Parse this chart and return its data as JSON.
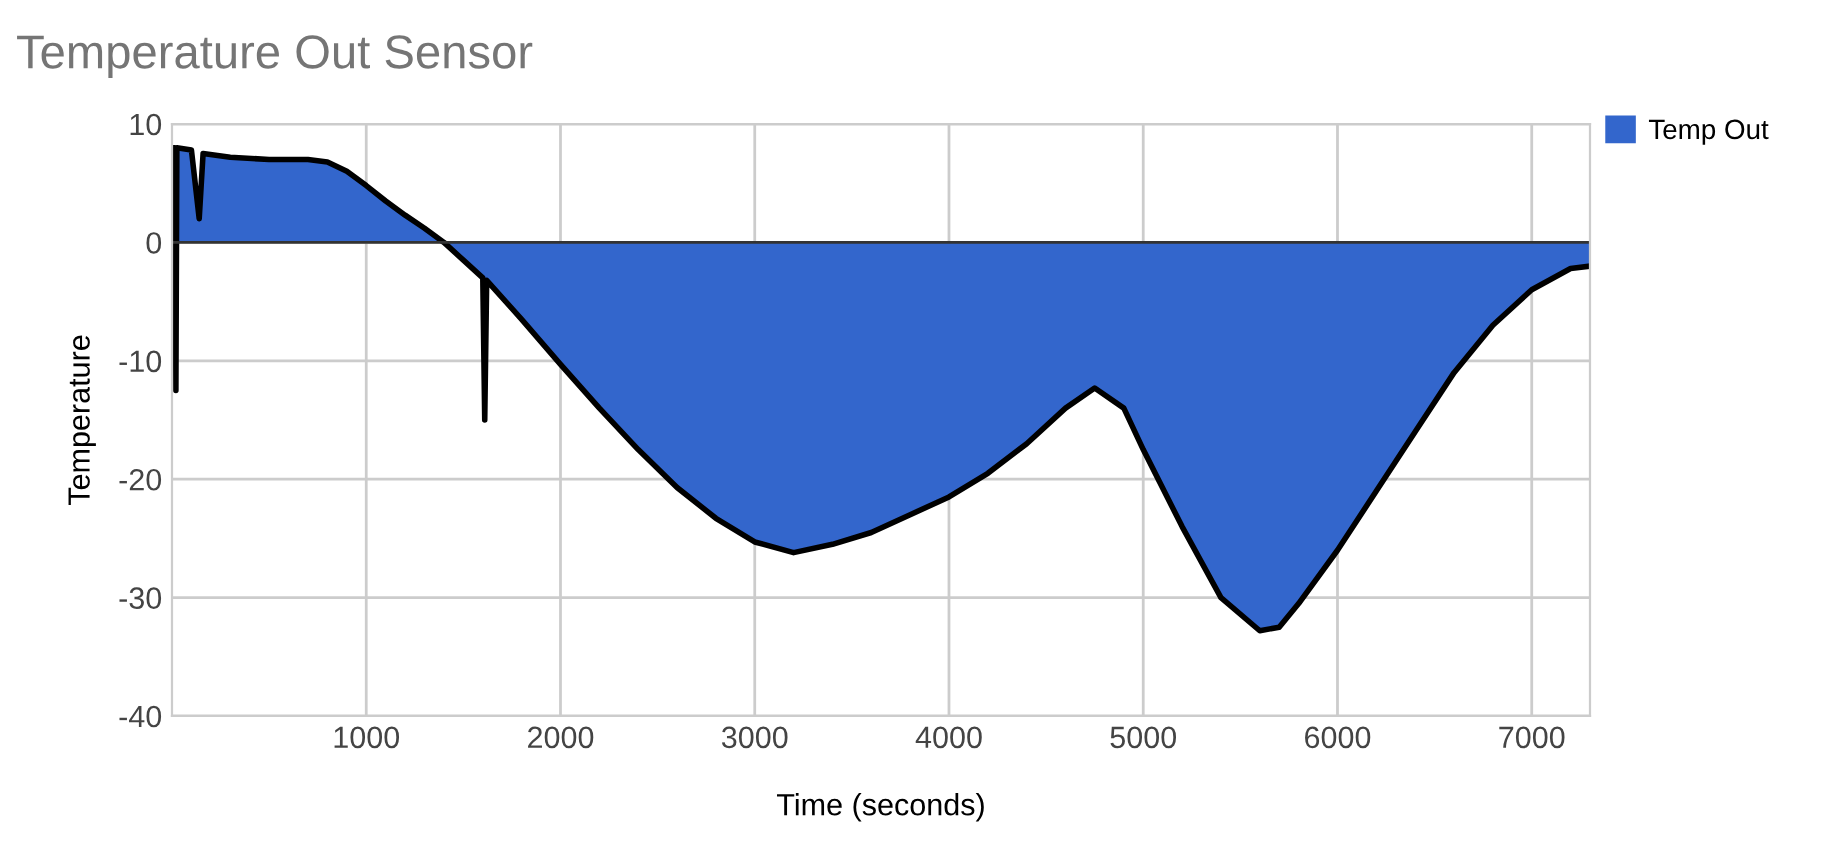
{
  "chart_data": {
    "type": "area",
    "title": "Temperature Out Sensor",
    "xlabel": "Time (seconds)",
    "ylabel": "Temperature",
    "xlim": [
      0,
      7300
    ],
    "xticks": [
      1000,
      2000,
      3000,
      4000,
      5000,
      6000,
      7000
    ],
    "ylim": [
      -40,
      10
    ],
    "yticks": [
      -40,
      -30,
      -20,
      -10,
      0,
      10
    ],
    "grid": true,
    "legend": "top right",
    "series": [
      {
        "name": "Temp Out",
        "color": "#3366cc",
        "x": [
          0,
          15,
          20,
          25,
          100,
          140,
          160,
          300,
          500,
          700,
          800,
          900,
          1000,
          1100,
          1200,
          1300,
          1400,
          1500,
          1600,
          1610,
          1620,
          1800,
          2000,
          2200,
          2400,
          2600,
          2800,
          3000,
          3200,
          3400,
          3600,
          3800,
          4000,
          4200,
          4400,
          4600,
          4750,
          4900,
          5000,
          5200,
          5400,
          5600,
          5700,
          5800,
          6000,
          6200,
          6400,
          6600,
          6800,
          7000,
          7200,
          7300
        ],
        "values": [
          8,
          8,
          -12.5,
          8,
          7.8,
          2,
          7.5,
          7.2,
          7,
          7,
          6.8,
          6,
          4.8,
          3.5,
          2.3,
          1.2,
          0,
          -1.5,
          -3,
          -15,
          -3.2,
          -6.5,
          -10.3,
          -14,
          -17.5,
          -20.7,
          -23.3,
          -25.3,
          -26.2,
          -25.5,
          -24.5,
          -23,
          -21.5,
          -19.5,
          -17,
          -14,
          -12.3,
          -14,
          -17.5,
          -24,
          -30,
          -32.8,
          -32.5,
          -30.5,
          -26,
          -21,
          -16,
          -11,
          -7,
          -4,
          -2.2,
          -2
        ]
      }
    ]
  }
}
